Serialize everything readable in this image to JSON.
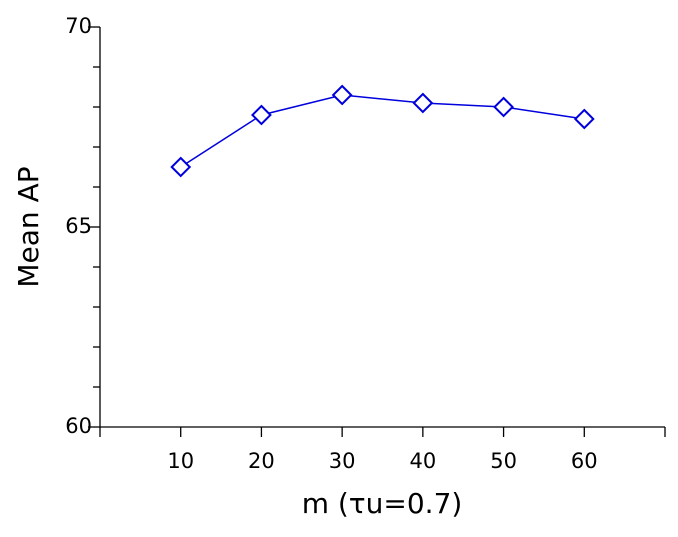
{
  "chart_data": {
    "type": "line",
    "x_label": "m (τu=0.7)",
    "y_label": "Mean AP",
    "x": [
      10,
      20,
      30,
      40,
      50,
      60
    ],
    "series": [
      {
        "name": "Mean AP",
        "color": "#0000dd",
        "marker": "diamond",
        "values": [
          66.5,
          67.8,
          68.3,
          68.1,
          68.0,
          67.7
        ]
      }
    ],
    "xlim": [
      0,
      70
    ],
    "xticks": [
      10,
      20,
      30,
      40,
      50,
      60
    ],
    "ylim": [
      60,
      70
    ],
    "yticks": [
      60,
      65,
      70
    ],
    "yminorticks": [
      61,
      62,
      63,
      64,
      66,
      67,
      68,
      69
    ],
    "grid": false
  }
}
